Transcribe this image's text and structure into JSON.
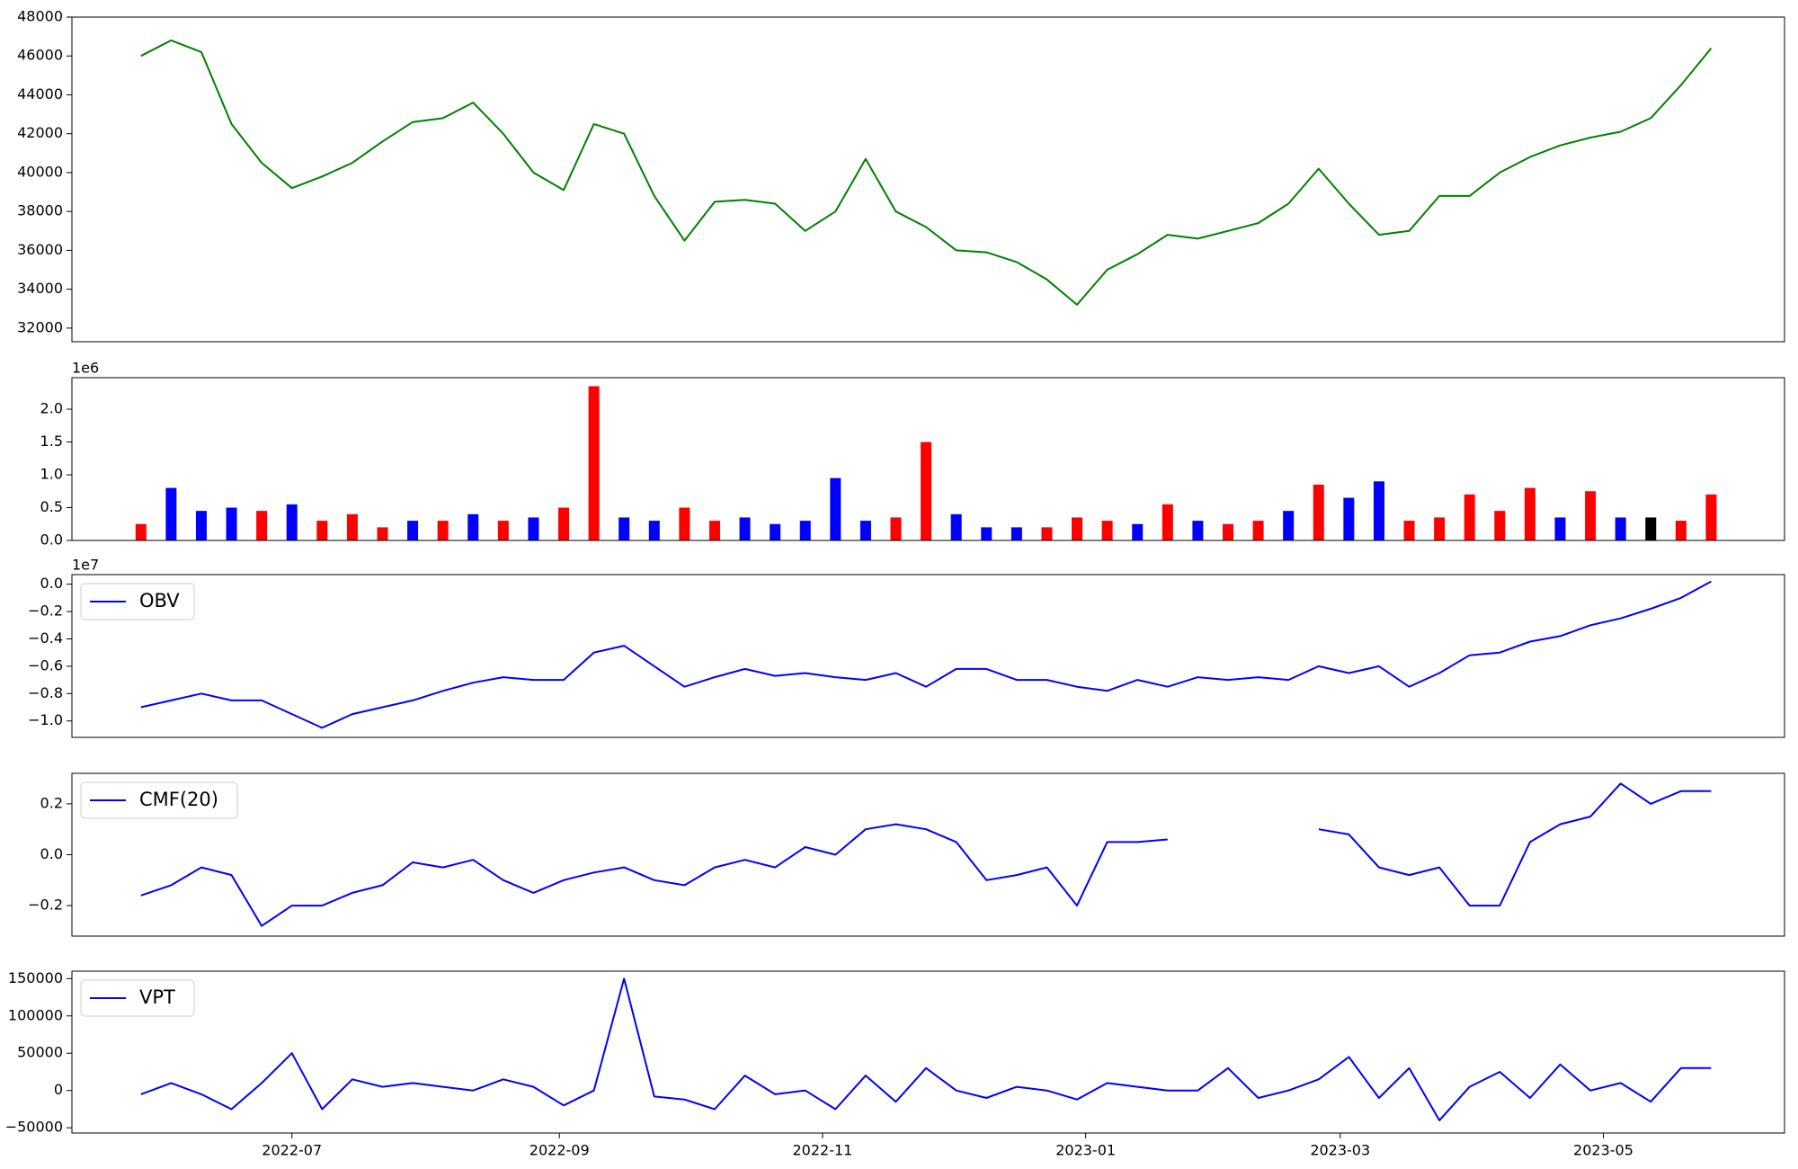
{
  "chart_data": [
    {
      "type": "line",
      "color": "#008000",
      "x": [
        "2022-05-27",
        "2022-06-03",
        "2022-06-10",
        "2022-06-17",
        "2022-06-24",
        "2022-07-01",
        "2022-07-08",
        "2022-07-15",
        "2022-07-22",
        "2022-07-29",
        "2022-08-05",
        "2022-08-12",
        "2022-08-19",
        "2022-08-26",
        "2022-09-02",
        "2022-09-09",
        "2022-09-16",
        "2022-09-23",
        "2022-09-30",
        "2022-10-07",
        "2022-10-14",
        "2022-10-21",
        "2022-10-28",
        "2022-11-04",
        "2022-11-11",
        "2022-11-18",
        "2022-11-25",
        "2022-12-02",
        "2022-12-09",
        "2022-12-16",
        "2022-12-23",
        "2022-12-30",
        "2023-01-06",
        "2023-01-13",
        "2023-01-20",
        "2023-01-27",
        "2023-02-03",
        "2023-02-10",
        "2023-02-17",
        "2023-02-24",
        "2023-03-03",
        "2023-03-10",
        "2023-03-17",
        "2023-03-24",
        "2023-03-31",
        "2023-04-07",
        "2023-04-14",
        "2023-04-21",
        "2023-04-28",
        "2023-05-05",
        "2023-05-12",
        "2023-05-19",
        "2023-05-26"
      ],
      "values": [
        46000,
        46800,
        46200,
        42500,
        40500,
        39200,
        39800,
        40500,
        41600,
        42600,
        42800,
        43600,
        42000,
        40000,
        39100,
        42500,
        42000,
        38800,
        36500,
        38500,
        38600,
        38400,
        37000,
        38000,
        40700,
        38000,
        37200,
        36000,
        35900,
        35400,
        34500,
        33200,
        35000,
        35800,
        36800,
        36600,
        37000,
        37400,
        38400,
        40200,
        38400,
        36800,
        37000,
        38800,
        38800,
        40000,
        40800,
        41400,
        41800,
        42100,
        42800,
        44500,
        46400
      ],
      "xlim": [
        "2022-05-11",
        "2023-06-12"
      ],
      "ylim": [
        31300,
        48000
      ],
      "yticks": [
        32000,
        34000,
        36000,
        38000,
        40000,
        42000,
        44000,
        46000,
        48000
      ]
    },
    {
      "type": "bar",
      "offset_label": "1e6",
      "x": [
        "2022-05-27",
        "2022-06-03",
        "2022-06-10",
        "2022-06-17",
        "2022-06-24",
        "2022-07-01",
        "2022-07-08",
        "2022-07-15",
        "2022-07-22",
        "2022-07-29",
        "2022-08-05",
        "2022-08-12",
        "2022-08-19",
        "2022-08-26",
        "2022-09-02",
        "2022-09-09",
        "2022-09-16",
        "2022-09-23",
        "2022-09-30",
        "2022-10-07",
        "2022-10-14",
        "2022-10-21",
        "2022-10-28",
        "2022-11-04",
        "2022-11-11",
        "2022-11-18",
        "2022-11-25",
        "2022-12-02",
        "2022-12-09",
        "2022-12-16",
        "2022-12-23",
        "2022-12-30",
        "2023-01-06",
        "2023-01-13",
        "2023-01-20",
        "2023-01-27",
        "2023-02-03",
        "2023-02-10",
        "2023-02-17",
        "2023-02-24",
        "2023-03-03",
        "2023-03-10",
        "2023-03-17",
        "2023-03-24",
        "2023-03-31",
        "2023-04-07",
        "2023-04-14",
        "2023-04-21",
        "2023-04-28",
        "2023-05-05",
        "2023-05-12",
        "2023-05-19",
        "2023-05-26"
      ],
      "values": [
        0.25,
        0.8,
        0.45,
        0.5,
        0.45,
        0.55,
        0.3,
        0.4,
        0.2,
        0.3,
        0.3,
        0.4,
        0.3,
        0.35,
        0.5,
        2.35,
        0.35,
        0.3,
        0.5,
        0.3,
        0.35,
        0.25,
        0.3,
        0.95,
        0.3,
        0.35,
        1.5,
        0.4,
        0.2,
        0.2,
        0.2,
        0.35,
        0.3,
        0.25,
        0.55,
        0.3,
        0.25,
        0.3,
        0.45,
        0.85,
        0.65,
        0.9,
        0.3,
        0.35,
        0.7,
        0.45,
        0.8,
        0.35,
        0.75,
        0.35,
        0.35,
        0.3,
        0.7
      ],
      "colors": [
        "red",
        "blue",
        "blue",
        "blue",
        "red",
        "blue",
        "red",
        "red",
        "red",
        "blue",
        "red",
        "blue",
        "red",
        "blue",
        "red",
        "red",
        "blue",
        "blue",
        "red",
        "red",
        "blue",
        "blue",
        "blue",
        "blue",
        "blue",
        "red",
        "red",
        "blue",
        "blue",
        "blue",
        "red",
        "red",
        "red",
        "blue",
        "red",
        "blue",
        "red",
        "red",
        "blue",
        "red",
        "blue",
        "blue",
        "red",
        "red",
        "red",
        "red",
        "red",
        "blue",
        "red",
        "blue",
        "black",
        "red",
        "red"
      ],
      "xlim": [
        "2022-05-11",
        "2023-06-12"
      ],
      "ylim": [
        0,
        2.48
      ],
      "yticks": [
        {
          "value": 0,
          "label": "0.0"
        },
        0.5,
        {
          "value": 1,
          "label": "1.0"
        },
        1.5,
        {
          "value": 2,
          "label": "2.0"
        }
      ]
    },
    {
      "type": "line",
      "offset_label": "1e7",
      "x": [
        "2022-05-27",
        "2022-06-03",
        "2022-06-10",
        "2022-06-17",
        "2022-06-24",
        "2022-07-01",
        "2022-07-08",
        "2022-07-15",
        "2022-07-22",
        "2022-07-29",
        "2022-08-05",
        "2022-08-12",
        "2022-08-19",
        "2022-08-26",
        "2022-09-02",
        "2022-09-09",
        "2022-09-16",
        "2022-09-23",
        "2022-09-30",
        "2022-10-07",
        "2022-10-14",
        "2022-10-21",
        "2022-10-28",
        "2022-11-04",
        "2022-11-11",
        "2022-11-18",
        "2022-11-25",
        "2022-12-02",
        "2022-12-09",
        "2022-12-16",
        "2022-12-23",
        "2022-12-30",
        "2023-01-06",
        "2023-01-13",
        "2023-01-20",
        "2023-01-27",
        "2023-02-03",
        "2023-02-10",
        "2023-02-17",
        "2023-02-24",
        "2023-03-03",
        "2023-03-10",
        "2023-03-17",
        "2023-03-24",
        "2023-03-31",
        "2023-04-07",
        "2023-04-14",
        "2023-04-21",
        "2023-04-28",
        "2023-05-05",
        "2023-05-12",
        "2023-05-19",
        "2023-05-26"
      ],
      "series": [
        {
          "name": "OBV",
          "color": "#0000ff",
          "values": [
            -0.9,
            -0.85,
            -0.8,
            -0.85,
            -0.85,
            -0.95,
            -1.05,
            -0.95,
            -0.9,
            -0.85,
            -0.78,
            -0.72,
            -0.68,
            -0.7,
            -0.7,
            -0.5,
            -0.45,
            -0.6,
            -0.75,
            -0.68,
            -0.62,
            -0.67,
            -0.65,
            -0.68,
            -0.7,
            -0.65,
            -0.75,
            -0.62,
            -0.62,
            -0.7,
            -0.7,
            -0.75,
            -0.78,
            -0.7,
            -0.75,
            -0.68,
            -0.7,
            -0.68,
            -0.7,
            -0.6,
            -0.65,
            -0.6,
            -0.75,
            -0.65,
            -0.52,
            -0.5,
            -0.42,
            -0.38,
            -0.3,
            -0.25,
            -0.18,
            -0.1,
            0.02
          ]
        }
      ],
      "legend": "upper left",
      "xlim": [
        "2022-05-11",
        "2023-06-12"
      ],
      "ylim": [
        -1.12,
        0.07
      ],
      "yticks": [
        {
          "value": -1,
          "label": "−1.0"
        },
        {
          "value": -0.8,
          "label": "−0.8"
        },
        {
          "value": -0.6,
          "label": "−0.6"
        },
        {
          "value": -0.4,
          "label": "−0.4"
        },
        {
          "value": -0.2,
          "label": "−0.2"
        },
        {
          "value": 0,
          "label": "0.0"
        }
      ]
    },
    {
      "type": "line",
      "x": [
        "2022-05-27",
        "2022-06-03",
        "2022-06-10",
        "2022-06-17",
        "2022-06-24",
        "2022-07-01",
        "2022-07-08",
        "2022-07-15",
        "2022-07-22",
        "2022-07-29",
        "2022-08-05",
        "2022-08-12",
        "2022-08-19",
        "2022-08-26",
        "2022-09-02",
        "2022-09-09",
        "2022-09-16",
        "2022-09-23",
        "2022-09-30",
        "2022-10-07",
        "2022-10-14",
        "2022-10-21",
        "2022-10-28",
        "2022-11-04",
        "2022-11-11",
        "2022-11-18",
        "2022-11-25",
        "2022-12-02",
        "2022-12-09",
        "2022-12-16",
        "2022-12-23",
        "2022-12-30",
        "2023-01-06",
        "2023-01-13",
        "2023-01-20",
        "2023-01-27",
        "2023-02-03",
        "2023-02-10",
        "2023-02-17",
        "2023-02-24",
        "2023-03-03",
        "2023-03-10",
        "2023-03-17",
        "2023-03-24",
        "2023-03-31",
        "2023-04-07",
        "2023-04-14",
        "2023-04-21",
        "2023-04-28",
        "2023-05-05",
        "2023-05-12",
        "2023-05-19",
        "2023-05-26"
      ],
      "series": [
        {
          "name": "CMF(20)",
          "color": "#0000ff",
          "values": [
            -0.16,
            -0.12,
            -0.05,
            -0.08,
            -0.28,
            -0.2,
            -0.2,
            -0.15,
            -0.12,
            -0.03,
            -0.05,
            -0.02,
            -0.1,
            -0.15,
            -0.1,
            -0.07,
            -0.05,
            -0.1,
            -0.12,
            -0.05,
            -0.02,
            -0.05,
            0.03,
            0.0,
            0.1,
            0.12,
            0.1,
            0.05,
            -0.1,
            -0.08,
            -0.05,
            -0.2,
            0.05,
            0.05,
            0.06,
            null,
            null,
            null,
            null,
            0.1,
            0.08,
            -0.05,
            -0.08,
            -0.05,
            -0.2,
            -0.2,
            0.05,
            0.12,
            0.15,
            0.28,
            0.2,
            0.25,
            0.25
          ]
        }
      ],
      "legend": "upper left",
      "xlim": [
        "2022-05-11",
        "2023-06-12"
      ],
      "ylim": [
        -0.32,
        0.32
      ],
      "yticks": [
        {
          "value": -0.2,
          "label": "−0.2"
        },
        {
          "value": 0,
          "label": "0.0"
        },
        0.2
      ]
    },
    {
      "type": "line",
      "x": [
        "2022-05-27",
        "2022-06-03",
        "2022-06-10",
        "2022-06-17",
        "2022-06-24",
        "2022-07-01",
        "2022-07-08",
        "2022-07-15",
        "2022-07-22",
        "2022-07-29",
        "2022-08-05",
        "2022-08-12",
        "2022-08-19",
        "2022-08-26",
        "2022-09-02",
        "2022-09-09",
        "2022-09-16",
        "2022-09-23",
        "2022-09-30",
        "2022-10-07",
        "2022-10-14",
        "2022-10-21",
        "2022-10-28",
        "2022-11-04",
        "2022-11-11",
        "2022-11-18",
        "2022-11-25",
        "2022-12-02",
        "2022-12-09",
        "2022-12-16",
        "2022-12-23",
        "2022-12-30",
        "2023-01-06",
        "2023-01-13",
        "2023-01-20",
        "2023-01-27",
        "2023-02-03",
        "2023-02-10",
        "2023-02-17",
        "2023-02-24",
        "2023-03-03",
        "2023-03-10",
        "2023-03-17",
        "2023-03-24",
        "2023-03-31",
        "2023-04-07",
        "2023-04-14",
        "2023-04-21",
        "2023-04-28",
        "2023-05-05",
        "2023-05-12",
        "2023-05-19",
        "2023-05-26"
      ],
      "series": [
        {
          "name": "VPT",
          "color": "#0000ff",
          "values": [
            -5000,
            10000,
            -5000,
            -25000,
            10000,
            50000,
            -25000,
            15000,
            5000,
            10000,
            5000,
            0,
            15000,
            5000,
            -20000,
            0,
            150000,
            -8000,
            -12000,
            -25000,
            20000,
            -5000,
            0,
            -25000,
            20000,
            -15000,
            30000,
            0,
            -10000,
            5000,
            0,
            -12000,
            10000,
            5000,
            0,
            0,
            30000,
            -10000,
            0,
            15000,
            45000,
            -10000,
            30000,
            -40000,
            5000,
            25000,
            -10000,
            35000,
            0,
            10000,
            -15000,
            30000,
            30000
          ]
        }
      ],
      "legend": "upper left",
      "xlim": [
        "2022-05-11",
        "2023-06-12"
      ],
      "ylim": [
        -57000,
        160000
      ],
      "yticks": [
        {
          "value": -50000,
          "label": "−50000"
        },
        0,
        50000,
        100000,
        150000
      ],
      "xticks": [
        {
          "value": "2022-07-01",
          "label": "2022-07"
        },
        {
          "value": "2022-09-01",
          "label": "2022-09"
        },
        {
          "value": "2022-11-01",
          "label": "2022-11"
        },
        {
          "value": "2023-01-01",
          "label": "2023-01"
        },
        {
          "value": "2023-03-01",
          "label": "2023-03"
        },
        {
          "value": "2023-05-01",
          "label": "2023-05"
        }
      ]
    }
  ]
}
